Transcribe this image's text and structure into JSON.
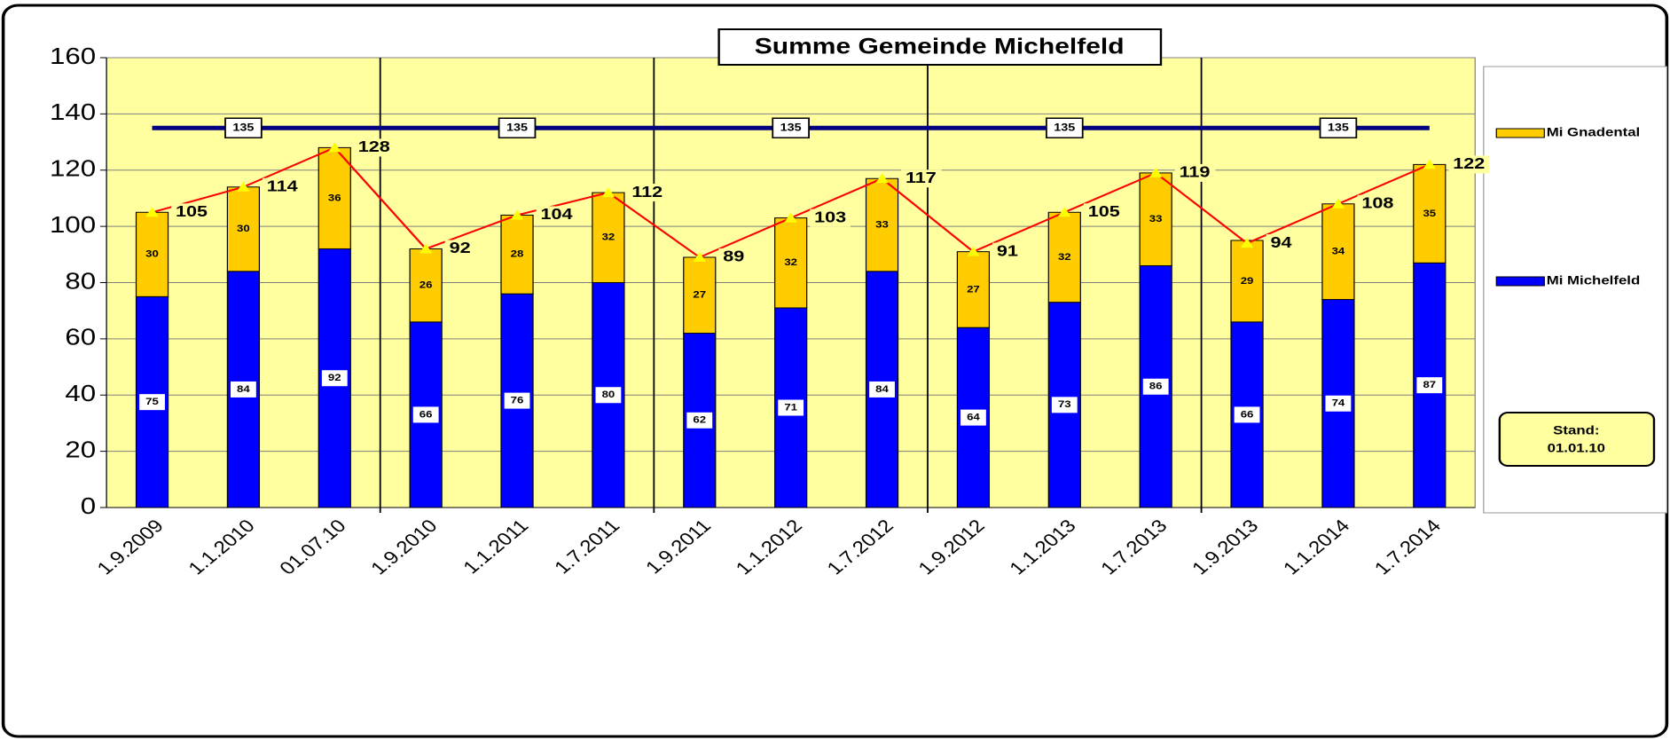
{
  "chart_data": {
    "type": "stacked_bar_line",
    "title": "Summe Gemeinde Michelfeld",
    "categories": [
      "1.9.2009",
      "1.1.2010",
      "01.07.10",
      "1.9.2010",
      "1.1.2011",
      "1.7.2011",
      "1.9.2011",
      "1.1.2012",
      "1.7.2012",
      "1.9.2012",
      "1.1.2013",
      "1.7.2013",
      "1.9.2013",
      "1.1.2014",
      "1.7.2014"
    ],
    "series": [
      {
        "name": "Mi Michelfeld",
        "color": "#0000ff",
        "values": [
          75,
          84,
          92,
          66,
          76,
          80,
          62,
          71,
          84,
          64,
          73,
          86,
          66,
          74,
          87
        ]
      },
      {
        "name": "Mi Gnadental",
        "color": "#ffcc00",
        "values": [
          30,
          30,
          36,
          26,
          28,
          32,
          27,
          32,
          33,
          27,
          32,
          33,
          29,
          34,
          35
        ]
      }
    ],
    "totals": {
      "color": "#ff0000",
      "values": [
        105,
        114,
        128,
        92,
        104,
        112,
        89,
        103,
        117,
        91,
        105,
        119,
        94,
        108,
        122
      ]
    },
    "reference": {
      "value": 135,
      "color": "#000080"
    },
    "annotation": [
      "Stand:",
      "01.01.10"
    ],
    "ylim": [
      0,
      160
    ],
    "yticks": [
      0,
      20,
      40,
      60,
      80,
      100,
      120,
      140,
      160
    ],
    "grid": true,
    "legend": "right"
  }
}
